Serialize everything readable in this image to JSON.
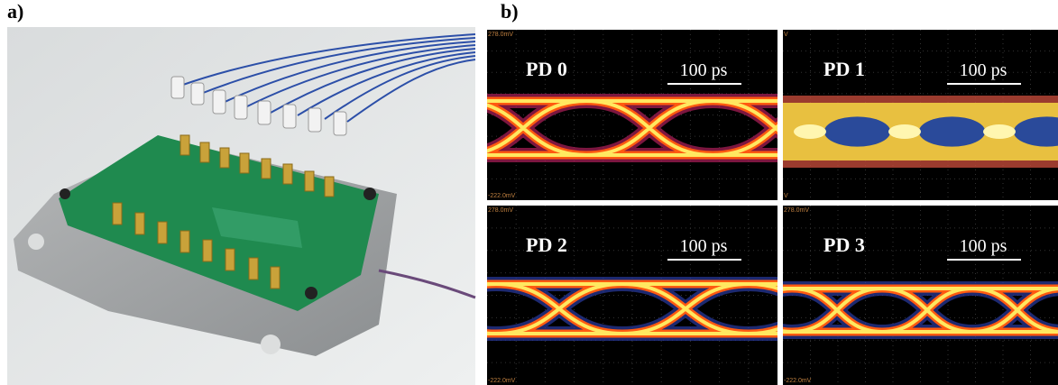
{
  "panels": {
    "a": {
      "label": "a)"
    },
    "b": {
      "label": "b)",
      "eyes": [
        {
          "name": "PD 0",
          "scale": "100 ps",
          "top": "278.0mV",
          "bottom": "-222.0mV"
        },
        {
          "name": "PD 1",
          "scale": "100 ps",
          "top": "V",
          "bottom": "V"
        },
        {
          "name": "PD 2",
          "scale": "100 ps",
          "top": "278.0mV",
          "bottom": "-222.0mV"
        },
        {
          "name": "PD 3",
          "scale": "100 ps",
          "top": "278.0mV",
          "bottom": "-222.0mV"
        }
      ]
    }
  }
}
